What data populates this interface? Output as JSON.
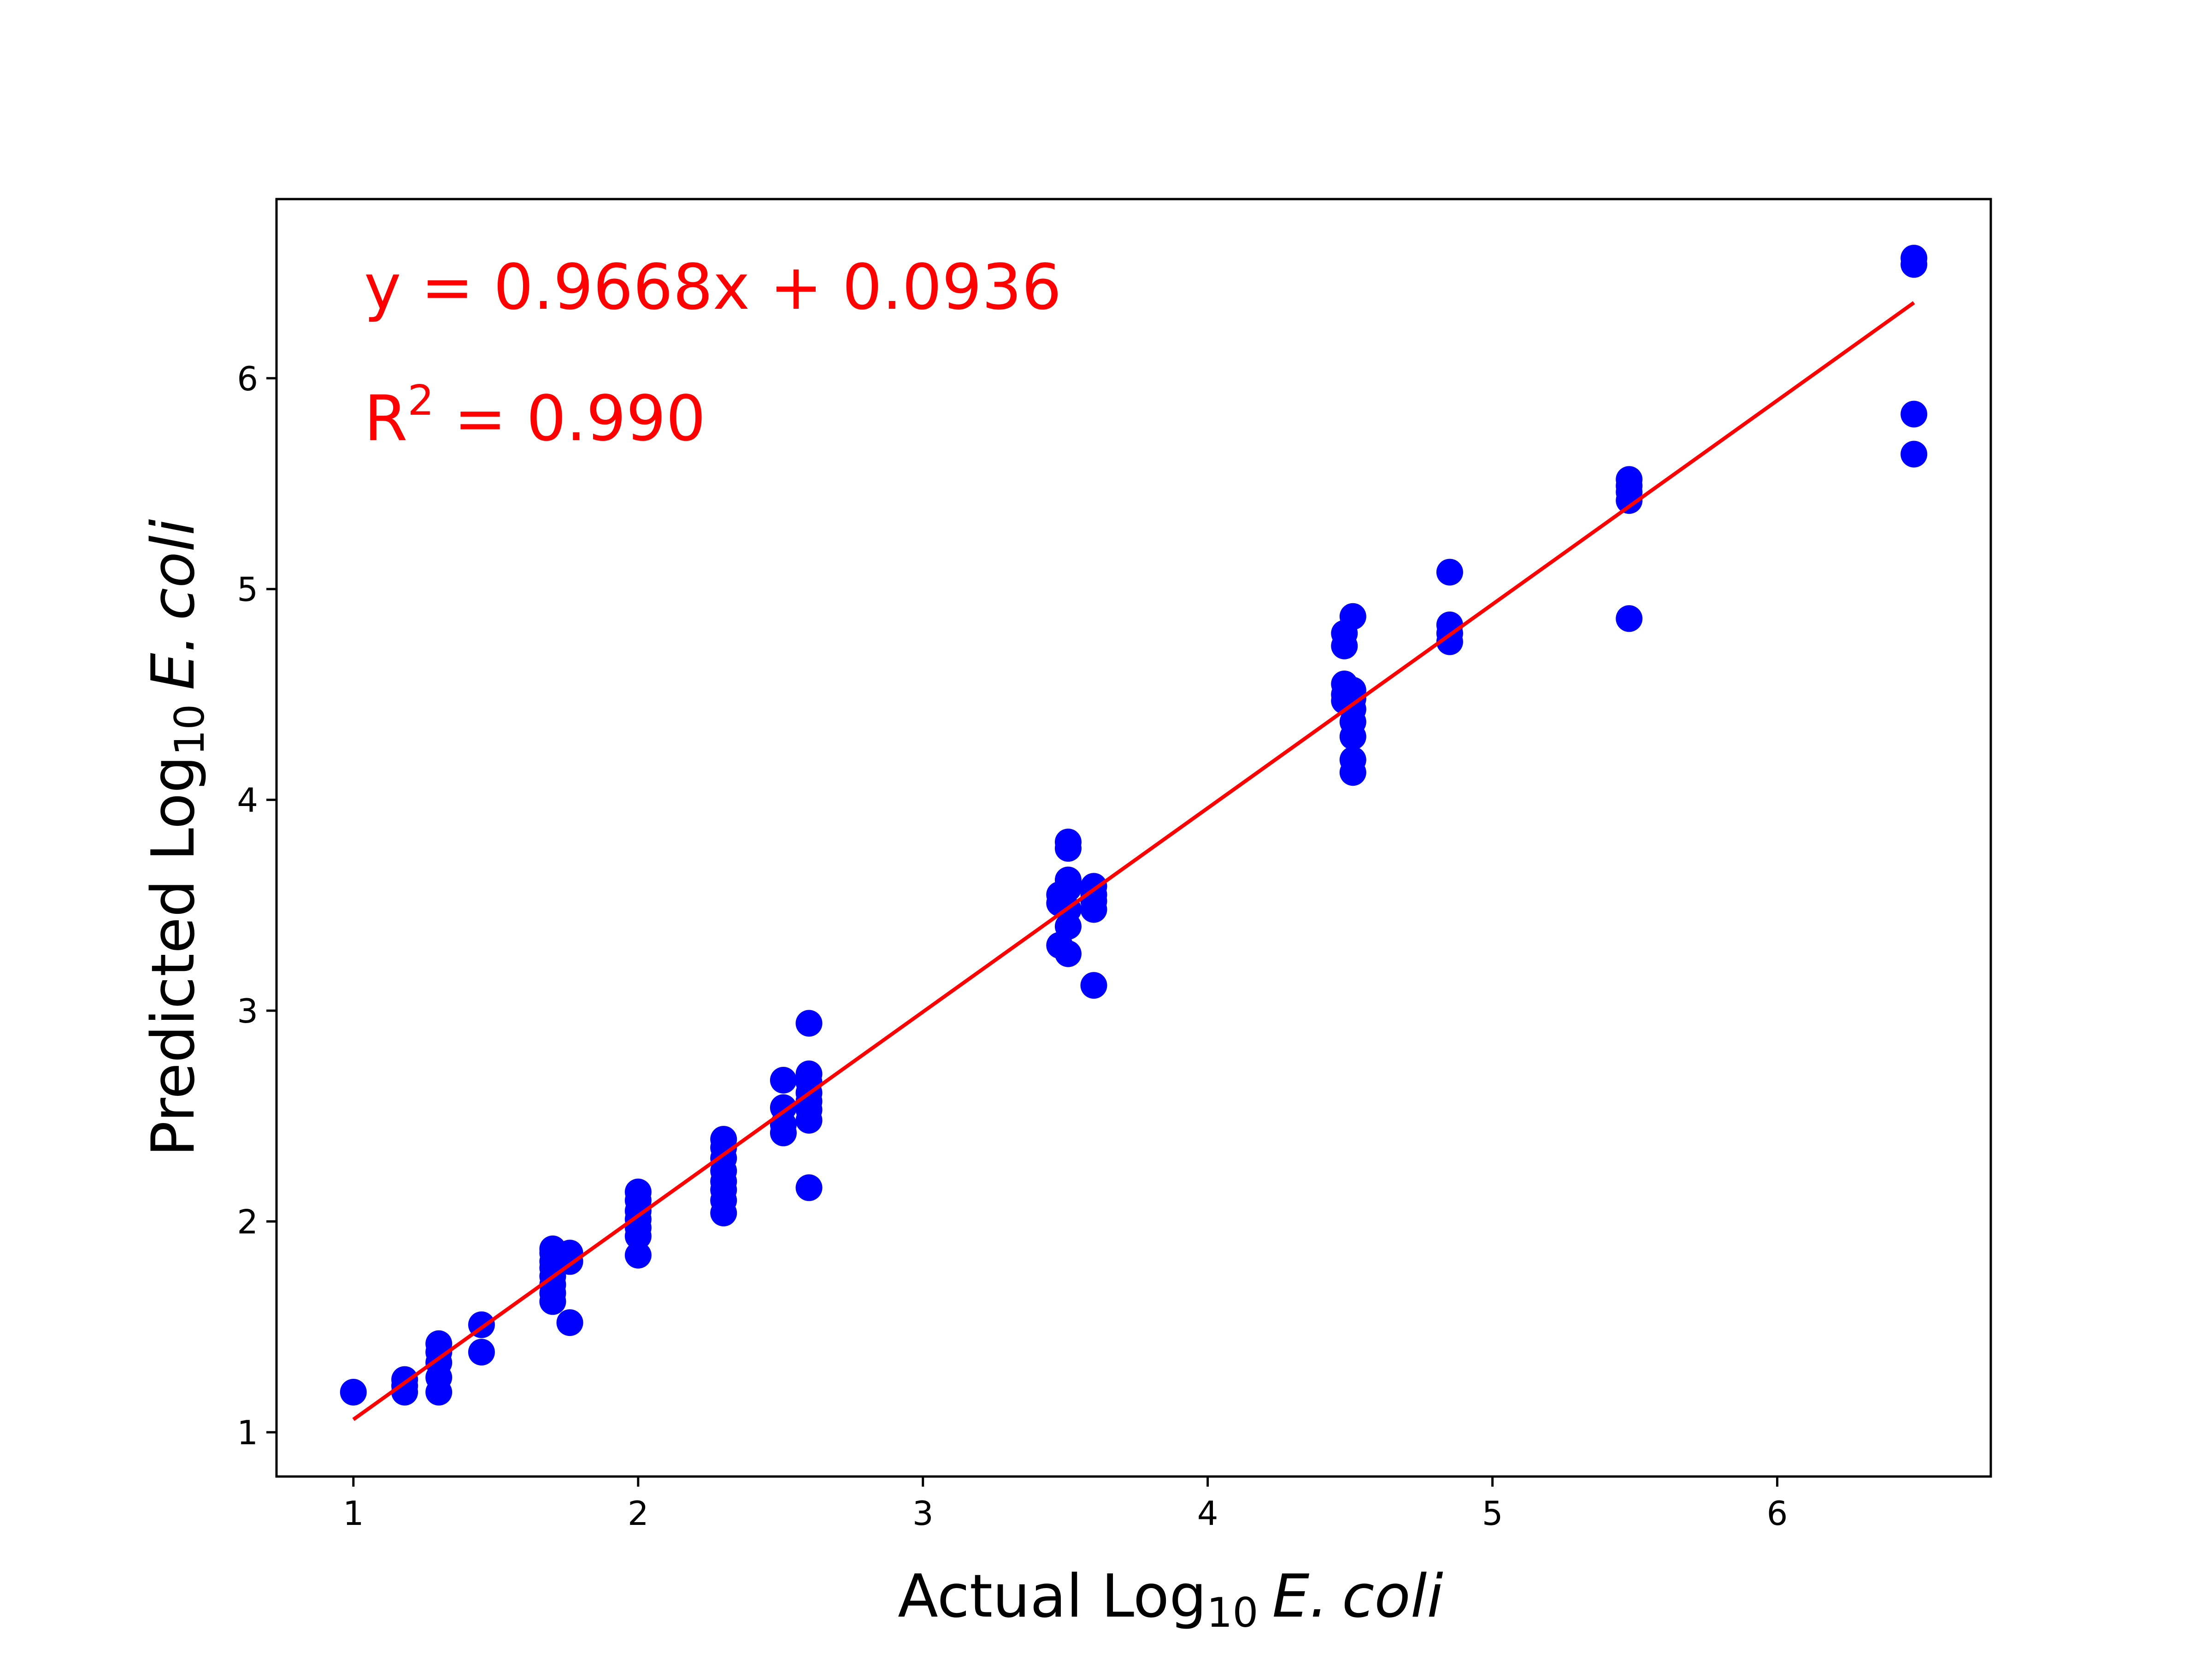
{
  "chart_data": {
    "type": "scatter",
    "xlabel": {
      "prefix": "Actual Log",
      "sub": "10",
      "italic": "E.",
      "italic2": "coli"
    },
    "ylabel": {
      "prefix": "Predicted Log",
      "sub": "10",
      "italic": "E.",
      "italic2": "coli"
    },
    "xlim": [
      0.73,
      6.75
    ],
    "ylim": [
      0.79,
      6.85
    ],
    "xticks": [
      "1",
      "2",
      "3",
      "4",
      "5",
      "6"
    ],
    "yticks": [
      "1",
      "2",
      "3",
      "4",
      "5",
      "6"
    ],
    "grid": false,
    "annotations": {
      "equation": "y = 0.9668x + 0.0936",
      "r2_prefix": "R",
      "r2_sup": "2",
      "r2_value": " = 0.990"
    },
    "fit_line": {
      "slope": 0.9668,
      "intercept": 0.0936,
      "x_range": [
        1.0,
        6.48
      ],
      "color": "#ff0000"
    },
    "point_color": "#0000ff",
    "points": [
      [
        1.0,
        1.19
      ],
      [
        1.18,
        1.19
      ],
      [
        1.18,
        1.22
      ],
      [
        1.18,
        1.25
      ],
      [
        1.3,
        1.19
      ],
      [
        1.3,
        1.26
      ],
      [
        1.3,
        1.33
      ],
      [
        1.3,
        1.38
      ],
      [
        1.3,
        1.42
      ],
      [
        1.45,
        1.38
      ],
      [
        1.45,
        1.51
      ],
      [
        1.7,
        1.62
      ],
      [
        1.7,
        1.66
      ],
      [
        1.7,
        1.7
      ],
      [
        1.7,
        1.74
      ],
      [
        1.7,
        1.78
      ],
      [
        1.7,
        1.81
      ],
      [
        1.7,
        1.85
      ],
      [
        1.7,
        1.87
      ],
      [
        1.76,
        1.52
      ],
      [
        1.76,
        1.81
      ],
      [
        1.76,
        1.85
      ],
      [
        2.0,
        1.84
      ],
      [
        2.0,
        1.93
      ],
      [
        2.0,
        1.97
      ],
      [
        2.0,
        2.01
      ],
      [
        2.0,
        2.05
      ],
      [
        2.0,
        2.1
      ],
      [
        2.0,
        2.14
      ],
      [
        2.3,
        2.04
      ],
      [
        2.3,
        2.1
      ],
      [
        2.3,
        2.15
      ],
      [
        2.3,
        2.19
      ],
      [
        2.3,
        2.24
      ],
      [
        2.3,
        2.3
      ],
      [
        2.3,
        2.35
      ],
      [
        2.3,
        2.39
      ],
      [
        2.51,
        2.42
      ],
      [
        2.51,
        2.46
      ],
      [
        2.51,
        2.54
      ],
      [
        2.51,
        2.67
      ],
      [
        2.6,
        2.16
      ],
      [
        2.6,
        2.48
      ],
      [
        2.6,
        2.53
      ],
      [
        2.6,
        2.57
      ],
      [
        2.6,
        2.61
      ],
      [
        2.6,
        2.66
      ],
      [
        2.6,
        2.7
      ],
      [
        2.6,
        2.94
      ],
      [
        3.48,
        3.31
      ],
      [
        3.48,
        3.51
      ],
      [
        3.48,
        3.55
      ],
      [
        3.51,
        3.27
      ],
      [
        3.51,
        3.4
      ],
      [
        3.51,
        3.48
      ],
      [
        3.51,
        3.58
      ],
      [
        3.51,
        3.62
      ],
      [
        3.51,
        3.77
      ],
      [
        3.51,
        3.8
      ],
      [
        3.6,
        3.12
      ],
      [
        3.6,
        3.48
      ],
      [
        3.6,
        3.52
      ],
      [
        3.6,
        3.55
      ],
      [
        3.6,
        3.59
      ],
      [
        4.48,
        4.47
      ],
      [
        4.48,
        4.5
      ],
      [
        4.48,
        4.55
      ],
      [
        4.48,
        4.73
      ],
      [
        4.48,
        4.79
      ],
      [
        4.51,
        4.13
      ],
      [
        4.51,
        4.19
      ],
      [
        4.51,
        4.3
      ],
      [
        4.51,
        4.37
      ],
      [
        4.51,
        4.43
      ],
      [
        4.51,
        4.48
      ],
      [
        4.51,
        4.52
      ],
      [
        4.51,
        4.87
      ],
      [
        4.85,
        4.75
      ],
      [
        4.85,
        4.79
      ],
      [
        4.85,
        4.83
      ],
      [
        4.85,
        5.08
      ],
      [
        5.48,
        4.86
      ],
      [
        5.48,
        5.42
      ],
      [
        5.48,
        5.46
      ],
      [
        5.48,
        5.49
      ],
      [
        5.48,
        5.52
      ],
      [
        6.48,
        5.64
      ],
      [
        6.48,
        5.83
      ],
      [
        6.48,
        6.54
      ],
      [
        6.48,
        6.57
      ]
    ]
  }
}
